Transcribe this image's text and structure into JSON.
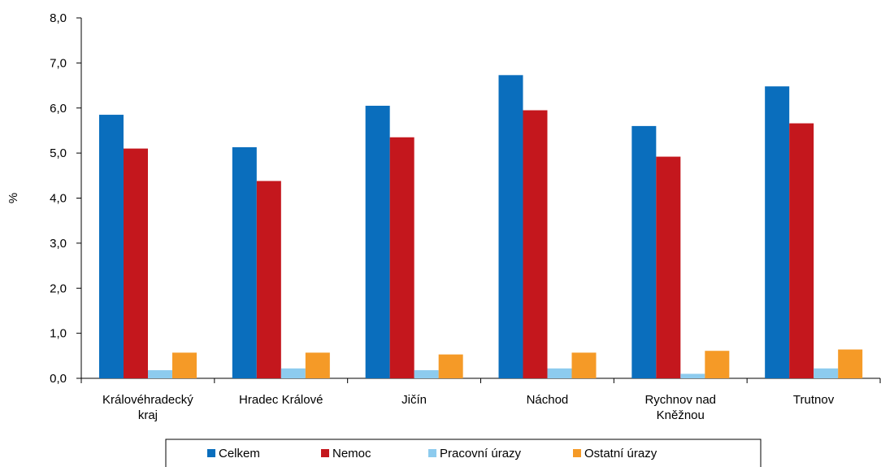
{
  "chart_data": {
    "type": "bar",
    "title": "",
    "xlabel": "",
    "ylabel": "%",
    "ylim": [
      0,
      8
    ],
    "y_ticks": [
      "0,0",
      "1,0",
      "2,0",
      "3,0",
      "4,0",
      "5,0",
      "6,0",
      "7,0",
      "8,0"
    ],
    "grid": false,
    "legend_position": "bottom",
    "categories": [
      [
        "Královéhradecký",
        "kraj"
      ],
      [
        "Hradec Králové"
      ],
      [
        "Jičín"
      ],
      [
        "Náchod"
      ],
      [
        "Rychnov nad",
        "Kněžnou"
      ],
      [
        "Trutnov"
      ]
    ],
    "series": [
      {
        "name": "Celkem",
        "color": "#0a6ebd",
        "values": [
          5.85,
          5.13,
          6.05,
          6.73,
          5.6,
          6.48
        ]
      },
      {
        "name": "Nemoc",
        "color": "#c4171d",
        "values": [
          5.1,
          4.38,
          5.35,
          5.95,
          4.92,
          5.66
        ]
      },
      {
        "name": "Pracovní úrazy",
        "color": "#8dcbee",
        "values": [
          0.18,
          0.22,
          0.18,
          0.22,
          0.1,
          0.22
        ]
      },
      {
        "name": "Ostatní úrazy",
        "color": "#f59a27",
        "values": [
          0.57,
          0.57,
          0.53,
          0.57,
          0.61,
          0.64
        ]
      }
    ]
  }
}
